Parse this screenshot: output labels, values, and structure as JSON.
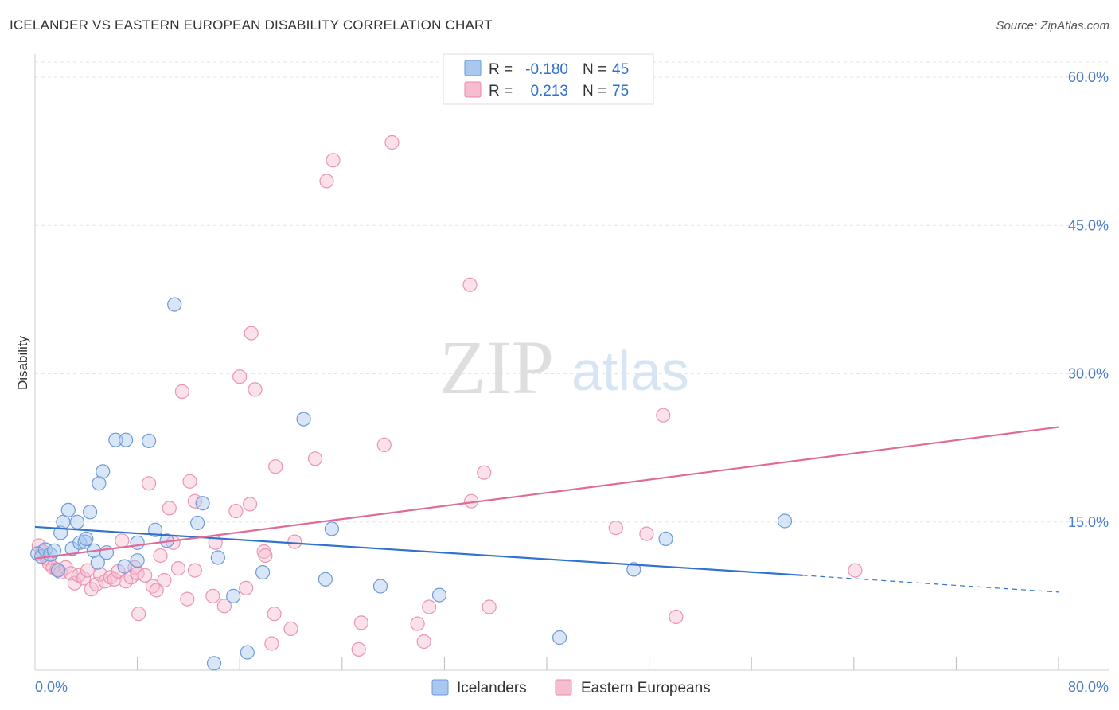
{
  "header": {
    "title": "ICELANDER VS EASTERN EUROPEAN DISABILITY CORRELATION CHART",
    "source": "Source: ZipAtlas.com"
  },
  "watermark": {
    "zip": "ZIP",
    "atlas": "atlas"
  },
  "legend": {
    "rows": [
      {
        "r_label": "R =",
        "r_value": "-0.180",
        "n_label": "N =",
        "n_value": "45",
        "color": "#a9c8f0",
        "stroke": "#6a9ad8"
      },
      {
        "r_label": "R =",
        "r_value": "0.213",
        "n_label": "N =",
        "n_value": "75",
        "color": "#f6bcd0",
        "stroke": "#e98aab"
      }
    ]
  },
  "bottom_legend": [
    {
      "label": "Icelanders",
      "color": "#a9c8f0",
      "stroke": "#6a9ad8"
    },
    {
      "label": "Eastern Europeans",
      "color": "#f6bcd0",
      "stroke": "#e98aab"
    }
  ],
  "colors": {
    "blue_fill": "#a9c8f0",
    "blue_stroke": "#6e9bd6",
    "blue_line": "#2f72d0",
    "pink_fill": "#f6bcd0",
    "pink_stroke": "#e895b2",
    "pink_line": "#e06b96",
    "grid": "#e6e6e6",
    "axis_text": "#4a7cc7"
  },
  "chart_data": {
    "type": "scatter",
    "title": "ICELANDER VS EASTERN EUROPEAN DISABILITY CORRELATION CHART",
    "xlabel": "",
    "ylabel": "Disability",
    "xlim": [
      0,
      80
    ],
    "ylim": [
      0,
      63
    ],
    "x_tick_labels": [
      "0.0%",
      "80.0%"
    ],
    "y_ticks": [
      15,
      30,
      45,
      60
    ],
    "y_tick_labels": [
      "15.0%",
      "30.0%",
      "45.0%",
      "60.0%"
    ],
    "grid": true,
    "series": [
      {
        "name": "Icelanders",
        "R": -0.18,
        "N": 45,
        "trend": {
          "x0": 0,
          "y0": 14.5,
          "x1": 60,
          "y1": 9.6,
          "dashed_to_x": 80,
          "dashed_to_y": 7.9
        },
        "points": [
          [
            0.2,
            11.8
          ],
          [
            0.5,
            11.5
          ],
          [
            0.8,
            12.2
          ],
          [
            1.2,
            11.7
          ],
          [
            1.5,
            12.1
          ],
          [
            1.8,
            10.1
          ],
          [
            2.0,
            13.9
          ],
          [
            2.2,
            15.0
          ],
          [
            2.6,
            16.2
          ],
          [
            2.9,
            12.3
          ],
          [
            3.3,
            15.0
          ],
          [
            3.5,
            12.9
          ],
          [
            3.9,
            13.0
          ],
          [
            4.0,
            13.3
          ],
          [
            4.3,
            16.0
          ],
          [
            4.6,
            12.1
          ],
          [
            4.9,
            10.9
          ],
          [
            5.0,
            18.9
          ],
          [
            5.3,
            20.1
          ],
          [
            5.6,
            11.9
          ],
          [
            6.3,
            23.3
          ],
          [
            7.1,
            23.3
          ],
          [
            7.0,
            10.5
          ],
          [
            8.0,
            11.1
          ],
          [
            8.0,
            12.9
          ],
          [
            8.9,
            23.2
          ],
          [
            9.4,
            14.2
          ],
          [
            10.3,
            13.1
          ],
          [
            10.9,
            37.0
          ],
          [
            12.7,
            14.9
          ],
          [
            13.1,
            16.9
          ],
          [
            14.0,
            0.7
          ],
          [
            14.3,
            11.4
          ],
          [
            15.5,
            7.5
          ],
          [
            16.6,
            1.8
          ],
          [
            17.8,
            9.9
          ],
          [
            21.0,
            25.4
          ],
          [
            23.2,
            14.3
          ],
          [
            22.7,
            9.2
          ],
          [
            27.0,
            8.5
          ],
          [
            31.6,
            7.6
          ],
          [
            41.0,
            3.3
          ],
          [
            46.8,
            10.2
          ],
          [
            49.3,
            13.3
          ],
          [
            58.6,
            15.1
          ]
        ]
      },
      {
        "name": "Eastern Europeans",
        "R": 0.213,
        "N": 75,
        "trend": {
          "x0": 0,
          "y0": 11.3,
          "x1": 80,
          "y1": 24.6
        },
        "points": [
          [
            0.3,
            12.6
          ],
          [
            0.6,
            12.0
          ],
          [
            0.9,
            11.3
          ],
          [
            1.1,
            10.8
          ],
          [
            1.4,
            10.4
          ],
          [
            1.7,
            10.2
          ],
          [
            2.0,
            9.9
          ],
          [
            2.4,
            10.4
          ],
          [
            2.8,
            9.8
          ],
          [
            3.1,
            8.8
          ],
          [
            3.4,
            9.6
          ],
          [
            3.8,
            9.3
          ],
          [
            4.1,
            10.1
          ],
          [
            4.4,
            8.2
          ],
          [
            4.8,
            8.7
          ],
          [
            5.1,
            9.7
          ],
          [
            5.5,
            9.0
          ],
          [
            5.9,
            9.4
          ],
          [
            6.2,
            9.2
          ],
          [
            6.5,
            10.0
          ],
          [
            6.8,
            13.1
          ],
          [
            7.1,
            9.0
          ],
          [
            7.5,
            9.4
          ],
          [
            7.8,
            10.4
          ],
          [
            8.0,
            9.8
          ],
          [
            8.1,
            5.7
          ],
          [
            8.6,
            9.6
          ],
          [
            8.9,
            18.9
          ],
          [
            9.2,
            8.5
          ],
          [
            9.5,
            8.1
          ],
          [
            9.8,
            11.6
          ],
          [
            10.1,
            9.1
          ],
          [
            10.5,
            16.4
          ],
          [
            10.8,
            12.9
          ],
          [
            11.2,
            10.3
          ],
          [
            11.5,
            28.2
          ],
          [
            11.9,
            7.2
          ],
          [
            12.1,
            19.1
          ],
          [
            12.5,
            17.1
          ],
          [
            12.5,
            10.1
          ],
          [
            13.9,
            7.5
          ],
          [
            14.1,
            12.9
          ],
          [
            14.8,
            6.5
          ],
          [
            15.7,
            16.1
          ],
          [
            16.0,
            29.7
          ],
          [
            16.5,
            8.3
          ],
          [
            16.8,
            16.8
          ],
          [
            16.9,
            34.1
          ],
          [
            17.2,
            28.4
          ],
          [
            17.9,
            12.0
          ],
          [
            18.0,
            11.6
          ],
          [
            18.5,
            2.7
          ],
          [
            18.7,
            5.7
          ],
          [
            18.8,
            20.6
          ],
          [
            20.0,
            4.2
          ],
          [
            20.3,
            13.0
          ],
          [
            21.9,
            21.4
          ],
          [
            22.8,
            49.5
          ],
          [
            23.3,
            51.6
          ],
          [
            25.3,
            2.1
          ],
          [
            25.5,
            4.8
          ],
          [
            27.3,
            22.8
          ],
          [
            27.9,
            53.4
          ],
          [
            29.9,
            4.7
          ],
          [
            30.4,
            2.9
          ],
          [
            30.8,
            6.4
          ],
          [
            34.0,
            39.0
          ],
          [
            34.1,
            17.1
          ],
          [
            35.1,
            20.0
          ],
          [
            35.5,
            6.4
          ],
          [
            45.4,
            14.4
          ],
          [
            47.8,
            13.8
          ],
          [
            49.1,
            25.8
          ],
          [
            50.1,
            5.4
          ],
          [
            64.1,
            10.1
          ]
        ]
      }
    ]
  }
}
